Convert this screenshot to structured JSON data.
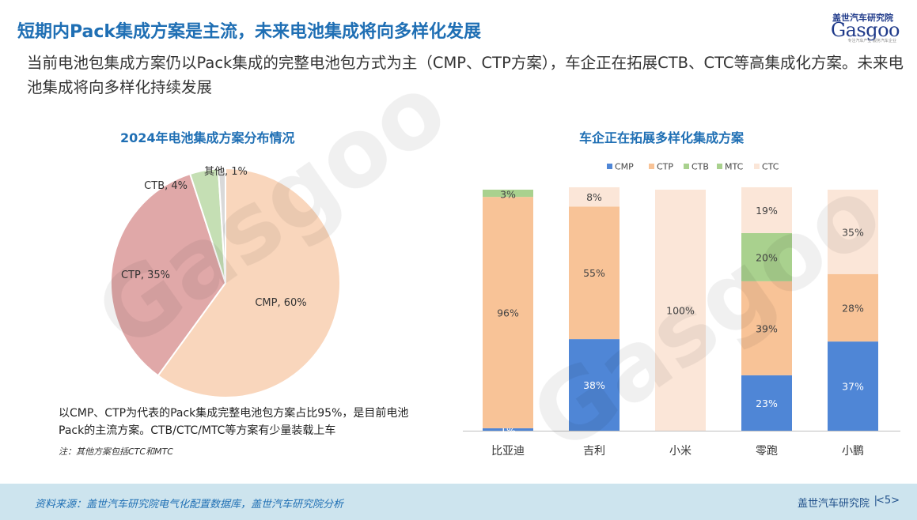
{
  "header": {
    "title": "短期内Pack集成方案是主流，未来电池集成将向多样化发展",
    "subtitle": "当前电池包集成方案仍以Pack集成的完整电池包方式为主（CMP、CTP方案），车企正在拓展CTB、CTC等高集成化方案。未来电池集成将向多样化持续发展"
  },
  "logo": {
    "top_text": "盖世汽车研究院",
    "word": "Gasgoo",
    "tagline": "专注汽车产业 服务汽车企业"
  },
  "notes": {
    "main": "以CMP、CTP为代表的Pack集成完整电池包方案占比95%，是目前电池Pack的主流方案。CTB/CTC/MTC等方案有少量装载上车",
    "small": "注：其他方案包括CTC和MTC"
  },
  "footer": {
    "source": "资料来源：盖世汽车研究院电气化配置数据库，盖世汽车研究院分析",
    "brand": "盖世汽车研究院",
    "separator": "|",
    "page": "<5>"
  },
  "colors": {
    "title_blue": "#1f6fb4",
    "CMP": "#4f86d6",
    "CTP": "#f8c397",
    "CTB": "#a9d18e",
    "MTC": "#a9d18e",
    "CTC": "#fbe6d8",
    "pie_CMP": "#f9d6bc",
    "pie_CTP": "#e0a8a8",
    "pie_CTB": "#c5dfb4",
    "pie_other": "#d9d9d9"
  },
  "chart_data": [
    {
      "type": "pie",
      "title": "2024年电池集成方案分布情况",
      "slices": [
        {
          "label": "CMP",
          "value": 60,
          "text": "CMP, 60%"
        },
        {
          "label": "CTP",
          "value": 35,
          "text": "CTP, 35%"
        },
        {
          "label": "CTB",
          "value": 4,
          "text": "CTB, 4%"
        },
        {
          "label": "其他",
          "value": 1,
          "text": "其他, 1%"
        }
      ]
    },
    {
      "type": "bar",
      "stacked": true,
      "title": "车企正在拓展多样化集成方案",
      "legend": [
        "CMP",
        "CTP",
        "CTB",
        "MTC",
        "CTC"
      ],
      "legend_position": "top",
      "categories": [
        "比亚迪",
        "吉利",
        "小米",
        "零跑",
        "小鹏"
      ],
      "series": [
        {
          "name": "CMP",
          "values": [
            1,
            38,
            0,
            23,
            37
          ]
        },
        {
          "name": "CTP",
          "values": [
            96,
            55,
            0,
            39,
            28
          ]
        },
        {
          "name": "CTB",
          "values": [
            3,
            0,
            0,
            0,
            0
          ]
        },
        {
          "name": "MTC",
          "values": [
            0,
            0,
            0,
            20,
            0
          ]
        },
        {
          "name": "CTC",
          "values": [
            0,
            8,
            100,
            19,
            35
          ]
        }
      ],
      "ylim": [
        0,
        100
      ]
    }
  ]
}
